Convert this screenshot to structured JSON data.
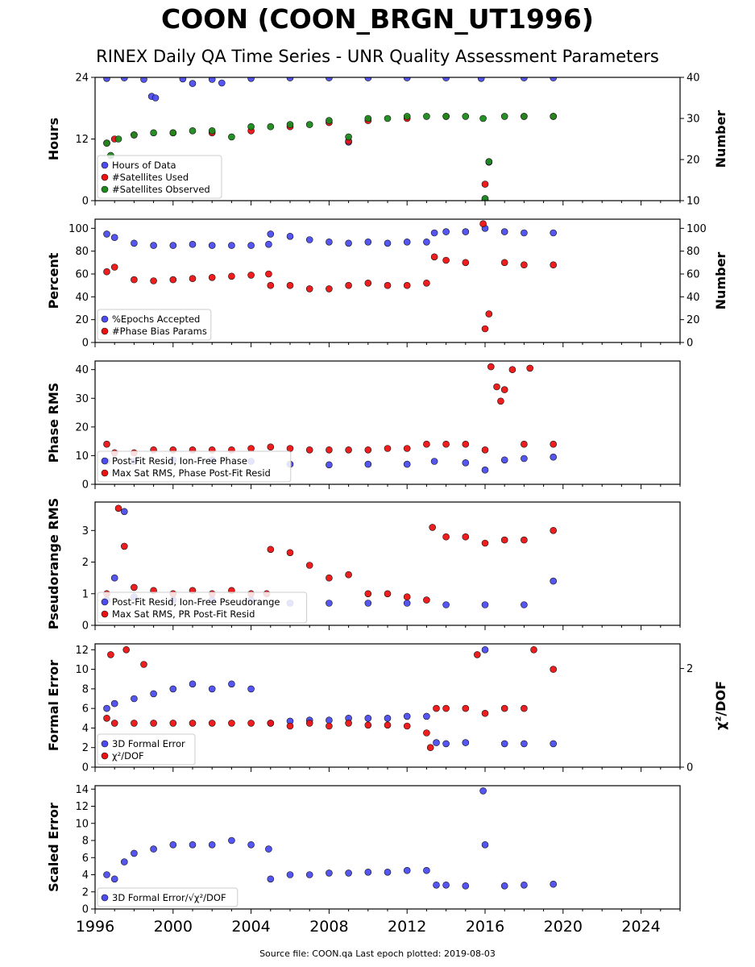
{
  "title": "COON (COON_BRGN_UT1996)",
  "subtitle": "RINEX Daily QA Time Series - UNR Quality Assessment Parameters",
  "source_note": "Source file: COON.qa Last epoch plotted: 2019-08-03",
  "colors": {
    "blue": "#4c4cf0",
    "red": "#ee1111",
    "green": "#1a8a1a"
  },
  "chart_data": [
    {
      "type": "scatter",
      "panel": "hours",
      "ylabel": "Hours",
      "y2label": "Number",
      "ylim": [
        0,
        24
      ],
      "y2lim": [
        10,
        40
      ],
      "yticks": [
        "0",
        "12",
        "24"
      ],
      "y2ticks": [
        "10",
        "20",
        "30",
        "40"
      ],
      "legend_placement": "lower-left",
      "series": [
        {
          "name": "Hours of Data",
          "color": "blue",
          "axis": "left",
          "x": [
            1996.6,
            1997.5,
            1998.5,
            1998.9,
            1999.1,
            2000.5,
            2001.0,
            2002.0,
            2002.5,
            2004.0,
            2006.0,
            2008.0,
            2009.0,
            2010.0,
            2012.0,
            2014.0,
            2015.8,
            2016.0,
            2016.2,
            2018.0,
            2019.5
          ],
          "y": [
            23.8,
            23.9,
            23.6,
            20.3,
            20.0,
            23.7,
            22.8,
            23.6,
            22.9,
            23.8,
            23.9,
            23.9,
            11.4,
            23.9,
            23.9,
            23.9,
            23.8,
            0.2,
            7.5,
            23.9,
            23.9
          ]
        },
        {
          "name": "#Satellites Used",
          "color": "red",
          "axis": "right",
          "x": [
            1996.6,
            1997.0,
            1998.0,
            2000.0,
            2002.0,
            2004.0,
            2006.0,
            2008.0,
            2009.0,
            2010.0,
            2012.0,
            2014.0,
            2016.0,
            2018.0,
            2019.5
          ],
          "y": [
            24,
            25,
            26,
            26.5,
            26.5,
            27,
            28,
            29,
            24.5,
            29.5,
            30,
            30.5,
            14,
            30.5,
            30.5
          ]
        },
        {
          "name": "#Satellites Observed",
          "color": "green",
          "axis": "right",
          "x": [
            1996.6,
            1996.8,
            1997.2,
            1998.0,
            1999.0,
            2000.0,
            2001.0,
            2002.0,
            2003.0,
            2004.0,
            2005.0,
            2006.0,
            2007.0,
            2008.0,
            2009.0,
            2010.0,
            2011.0,
            2012.0,
            2013.0,
            2014.0,
            2015.0,
            2015.9,
            2016.0,
            2016.2,
            2017.0,
            2018.0,
            2019.5
          ],
          "y": [
            24,
            21,
            25,
            26,
            26.5,
            26.5,
            27,
            27,
            25.5,
            28,
            28,
            28.5,
            28.5,
            29.5,
            25.5,
            30,
            30,
            30.5,
            30.5,
            30.5,
            30.5,
            30,
            10.5,
            19.5,
            30.5,
            30.5,
            30.5
          ]
        }
      ]
    },
    {
      "type": "scatter",
      "panel": "percent",
      "ylabel": "Percent",
      "y2label": "Number",
      "ylim": [
        0,
        108
      ],
      "y2lim": [
        0,
        108
      ],
      "yticks": [
        "0",
        "20",
        "40",
        "60",
        "80",
        "100"
      ],
      "y2ticks": [
        "0",
        "20",
        "40",
        "60",
        "80",
        "100"
      ],
      "legend_placement": "lower-left",
      "series": [
        {
          "name": "%Epochs Accepted",
          "color": "blue",
          "axis": "left",
          "x": [
            1996.6,
            1997.0,
            1998.0,
            1999.0,
            2000.0,
            2001.0,
            2002.0,
            2003.0,
            2004.0,
            2004.9,
            2005.0,
            2006.0,
            2007.0,
            2008.0,
            2009.0,
            2010.0,
            2011.0,
            2012.0,
            2013.0,
            2013.4,
            2014.0,
            2015.0,
            2016.0,
            2017.0,
            2018.0,
            2019.5
          ],
          "y": [
            95,
            92,
            87,
            85,
            85,
            86,
            85,
            85,
            85,
            86,
            95,
            93,
            90,
            88,
            87,
            88,
            87,
            88,
            88,
            96,
            97,
            97,
            100,
            97,
            96,
            96
          ]
        },
        {
          "name": "#Phase Bias Params",
          "color": "red",
          "axis": "right",
          "x": [
            1996.6,
            1997.0,
            1998.0,
            1999.0,
            2000.0,
            2001.0,
            2002.0,
            2003.0,
            2004.0,
            2004.9,
            2005.0,
            2006.0,
            2007.0,
            2008.0,
            2009.0,
            2010.0,
            2011.0,
            2012.0,
            2013.0,
            2013.4,
            2014.0,
            2015.0,
            2015.9,
            2016.0,
            2016.2,
            2017.0,
            2018.0,
            2019.5
          ],
          "y": [
            62,
            66,
            55,
            54,
            55,
            56,
            57,
            58,
            59,
            60,
            50,
            50,
            47,
            47,
            50,
            52,
            50,
            50,
            52,
            75,
            72,
            70,
            104,
            12,
            25,
            70,
            68,
            68
          ]
        }
      ]
    },
    {
      "type": "scatter",
      "panel": "phase",
      "ylabel": "Phase RMS",
      "ylim": [
        0,
        43
      ],
      "yticks": [
        "0",
        "10",
        "20",
        "30",
        "40"
      ],
      "legend_placement": "lower-left",
      "series": [
        {
          "name": "Post-Fit Resid, Ion-Free Phase",
          "color": "blue",
          "axis": "left",
          "x": [
            1996.6,
            1998.0,
            2000.0,
            2002.0,
            2004.0,
            2006.0,
            2008.0,
            2010.0,
            2012.0,
            2013.4,
            2015.0,
            2016.0,
            2017.0,
            2018.0,
            2019.5
          ],
          "y": [
            8,
            8,
            8.5,
            8.5,
            8,
            7,
            6.8,
            7,
            7,
            8,
            7.5,
            5,
            8.5,
            9,
            9.5
          ]
        },
        {
          "name": "Max Sat RMS, Phase Post-Fit Resid",
          "color": "red",
          "axis": "left",
          "x": [
            1996.6,
            1997.0,
            1998.0,
            1999.0,
            2000.0,
            2001.0,
            2002.0,
            2003.0,
            2004.0,
            2005.0,
            2006.0,
            2007.0,
            2008.0,
            2009.0,
            2010.0,
            2011.0,
            2012.0,
            2013.0,
            2014.0,
            2015.0,
            2016.0,
            2016.3,
            2016.6,
            2016.8,
            2017.0,
            2017.4,
            2018.0,
            2018.3,
            2019.5
          ],
          "y": [
            14,
            11,
            11,
            12,
            12,
            12,
            12,
            12,
            12.5,
            13,
            12.5,
            12,
            12,
            12,
            12,
            12.5,
            12.5,
            14,
            14,
            14,
            12,
            41,
            34,
            29,
            33,
            40,
            14,
            40.5,
            14
          ]
        }
      ]
    },
    {
      "type": "scatter",
      "panel": "pseudorange",
      "ylabel": "Pseudorange RMS",
      "ylim": [
        0,
        3.9
      ],
      "yticks": [
        "0",
        "1",
        "2",
        "3"
      ],
      "legend_placement": "lower-left",
      "series": [
        {
          "name": "Post-Fit Resid, Ion-Free Pseudorange",
          "color": "blue",
          "axis": "left",
          "x": [
            1996.6,
            1997.0,
            1997.5,
            1998.0,
            2000.0,
            2002.0,
            2004.0,
            2006.0,
            2008.0,
            2010.0,
            2012.0,
            2014.0,
            2016.0,
            2018.0,
            2019.5
          ],
          "y": [
            0.8,
            1.5,
            3.6,
            0.9,
            0.8,
            0.8,
            0.8,
            0.7,
            0.7,
            0.7,
            0.7,
            0.65,
            0.65,
            0.65,
            1.4
          ]
        },
        {
          "name": "Max Sat RMS, PR Post-Fit Resid",
          "color": "red",
          "axis": "left",
          "x": [
            1996.6,
            1997.2,
            1997.5,
            1998.0,
            1999.0,
            2000.0,
            2001.0,
            2002.0,
            2003.0,
            2004.0,
            2004.8,
            2005.0,
            2006.0,
            2007.0,
            2008.0,
            2009.0,
            2010.0,
            2011.0,
            2012.0,
            2013.0,
            2013.3,
            2014.0,
            2015.0,
            2016.0,
            2017.0,
            2018.0,
            2019.5
          ],
          "y": [
            1.0,
            3.7,
            2.5,
            1.2,
            1.1,
            1.0,
            1.1,
            1.0,
            1.1,
            1.0,
            1.0,
            2.4,
            2.3,
            1.9,
            1.5,
            1.6,
            1.0,
            1.0,
            0.9,
            0.8,
            3.1,
            2.8,
            2.8,
            2.6,
            2.7,
            2.7,
            3.0
          ]
        }
      ]
    },
    {
      "type": "scatter",
      "panel": "formal",
      "ylabel": "Formal Error",
      "y2label": "χ²/DOF",
      "ylim": [
        0,
        12.6
      ],
      "y2lim": [
        0,
        2.5
      ],
      "yticks": [
        "0",
        "2",
        "4",
        "6",
        "8",
        "10",
        "12"
      ],
      "y2ticks": [
        "0",
        "2"
      ],
      "legend_placement": "lower-left",
      "series": [
        {
          "name": "3D Formal Error",
          "color": "blue",
          "axis": "left",
          "x": [
            1996.6,
            1997.0,
            1998.0,
            1999.0,
            2000.0,
            2001.0,
            2002.0,
            2003.0,
            2004.0,
            2005.0,
            2006.0,
            2007.0,
            2008.0,
            2009.0,
            2010.0,
            2011.0,
            2012.0,
            2013.0,
            2013.5,
            2014.0,
            2015.0,
            2016.0,
            2017.0,
            2018.0,
            2019.5
          ],
          "y": [
            6.0,
            6.5,
            7.0,
            7.5,
            8.0,
            8.5,
            8.0,
            8.5,
            8.0,
            4.5,
            4.7,
            4.8,
            4.8,
            5.0,
            5.0,
            5.0,
            5.2,
            5.2,
            2.5,
            2.4,
            2.5,
            12.0,
            2.4,
            2.4,
            2.4
          ]
        },
        {
          "name": "χ²/DOF",
          "color": "red",
          "axis": "left",
          "x": [
            1996.6,
            1996.8,
            1997.0,
            1997.6,
            1998.0,
            1998.5,
            1999.0,
            2000.0,
            2001.0,
            2002.0,
            2003.0,
            2004.0,
            2005.0,
            2006.0,
            2007.0,
            2008.0,
            2009.0,
            2010.0,
            2011.0,
            2012.0,
            2013.0,
            2013.2,
            2013.5,
            2014.0,
            2015.0,
            2015.6,
            2016.0,
            2017.0,
            2018.0,
            2018.5,
            2019.5
          ],
          "y": [
            5.0,
            11.5,
            4.5,
            12.0,
            4.5,
            10.5,
            4.5,
            4.5,
            4.5,
            4.5,
            4.5,
            4.5,
            4.5,
            4.2,
            4.5,
            4.2,
            4.5,
            4.3,
            4.3,
            4.2,
            3.5,
            2.0,
            6.0,
            6.0,
            6.0,
            11.5,
            5.5,
            6.0,
            6.0,
            12.0,
            10.0
          ]
        }
      ]
    },
    {
      "type": "scatter",
      "panel": "scaled",
      "ylabel": "Scaled Error",
      "ylim": [
        0,
        14.4
      ],
      "yticks": [
        "0",
        "2",
        "4",
        "6",
        "8",
        "10",
        "12",
        "14"
      ],
      "legend_placement": "lower-left",
      "xlim": [
        1996,
        2026
      ],
      "xticks": [
        "1996",
        "2000",
        "2004",
        "2008",
        "2012",
        "2016",
        "2020",
        "2024"
      ],
      "series": [
        {
          "name": "3D Formal Error/√χ²/DOF",
          "color": "blue",
          "axis": "left",
          "x": [
            1996.6,
            1997.0,
            1997.5,
            1998.0,
            1999.0,
            2000.0,
            2001.0,
            2002.0,
            2003.0,
            2004.0,
            2004.9,
            2005.0,
            2006.0,
            2007.0,
            2008.0,
            2009.0,
            2010.0,
            2011.0,
            2012.0,
            2013.0,
            2013.5,
            2014.0,
            2015.0,
            2015.9,
            2016.0,
            2017.0,
            2018.0,
            2019.5
          ],
          "y": [
            4.0,
            3.5,
            5.5,
            6.5,
            7.0,
            7.5,
            7.5,
            7.5,
            8.0,
            7.5,
            7.0,
            3.5,
            4.0,
            4.0,
            4.2,
            4.2,
            4.3,
            4.3,
            4.5,
            4.5,
            2.8,
            2.8,
            2.7,
            13.8,
            7.5,
            2.7,
            2.8,
            2.9
          ]
        }
      ]
    }
  ]
}
